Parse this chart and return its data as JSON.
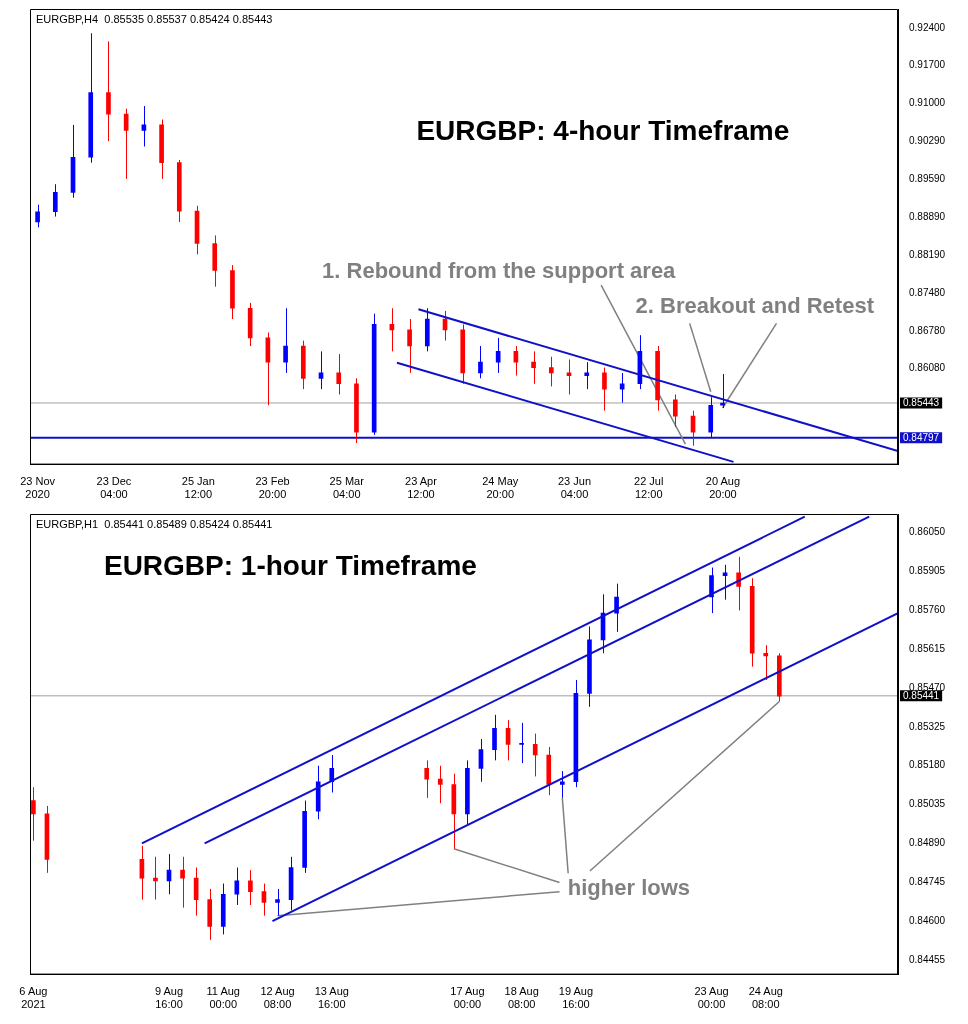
{
  "chart_data": [
    {
      "type": "candlestick",
      "title": "EURGBP: 4-hour Timeframe",
      "subtitle": "EURGBP,H4  0.85535 0.85537 0.85424 0.85443",
      "xlim": [
        "2020-11-20T00:00",
        "2021-10-29T00:00"
      ],
      "ylim": [
        0.843,
        0.9275
      ],
      "xticks": [
        {
          "value": "2020-11-23T00:00",
          "label": "23 Nov 2020"
        },
        {
          "value": "2020-12-23T04:00",
          "label": "23 Dec 04:00"
        },
        {
          "value": "2021-01-25T12:00",
          "label": "25 Jan 12:00"
        },
        {
          "value": "2021-02-23T20:00",
          "label": "23 Feb 20:00"
        },
        {
          "value": "2021-03-25T04:00",
          "label": "25 Mar 04:00"
        },
        {
          "value": "2021-04-23T12:00",
          "label": "23 Apr 12:00"
        },
        {
          "value": "2021-05-24T20:00",
          "label": "24 May 20:00"
        },
        {
          "value": "2021-06-23T04:00",
          "label": "23 Jun 04:00"
        },
        {
          "value": "2021-07-22T12:00",
          "label": "22 Jul 12:00"
        },
        {
          "value": "2021-08-20T20:00",
          "label": "20 Aug 20:00"
        }
      ],
      "yticks": [
        {
          "value": 0.924,
          "label": "0.92400"
        },
        {
          "value": 0.917,
          "label": "0.91700"
        },
        {
          "value": 0.91,
          "label": "0.91000"
        },
        {
          "value": 0.9029,
          "label": "0.90290"
        },
        {
          "value": 0.8959,
          "label": "0.89590"
        },
        {
          "value": 0.8889,
          "label": "0.88890"
        },
        {
          "value": 0.8819,
          "label": "0.88190"
        },
        {
          "value": 0.8748,
          "label": "0.87480"
        },
        {
          "value": 0.8678,
          "label": "0.86780"
        },
        {
          "value": 0.8608,
          "label": "0.86080"
        }
      ],
      "ref_lines": [
        {
          "axis": "y",
          "value": 0.84797,
          "label": "0.84797",
          "color": "#1010c8"
        },
        {
          "axis": "y",
          "value": 0.85443,
          "label": "0.85443"
        }
      ],
      "annotations": [
        {
          "text": "1. Rebound from the support area",
          "x": "2021-08-06T00:00",
          "y": 0.8468
        },
        {
          "text": "2. Breakout and Retest",
          "x": "2021-08-16T00:00",
          "y": 0.8565
        }
      ],
      "series": [
        {
          "type": "candlestick",
          "x": [
            "2020-11-23",
            "2020-11-30",
            "2020-12-07",
            "2020-12-14",
            "2020-12-21",
            "2020-12-28",
            "2021-01-04",
            "2021-01-11",
            "2021-01-18",
            "2021-01-25",
            "2021-02-01",
            "2021-02-08",
            "2021-02-15",
            "2021-02-22",
            "2021-03-01",
            "2021-03-08",
            "2021-03-15",
            "2021-03-22",
            "2021-03-29",
            "2021-04-05",
            "2021-04-12",
            "2021-04-19",
            "2021-04-26",
            "2021-05-03",
            "2021-05-10",
            "2021-05-17",
            "2021-05-24",
            "2021-05-31",
            "2021-06-07",
            "2021-06-14",
            "2021-06-21",
            "2021-06-28",
            "2021-07-05",
            "2021-07-12",
            "2021-07-19",
            "2021-07-26",
            "2021-08-02",
            "2021-08-09",
            "2021-08-16",
            "2021-08-20T16:00"
          ],
          "ohlc": [
            [
              0.888,
              0.8912,
              0.887,
              0.8899
            ],
            [
              0.8899,
              0.895,
              0.889,
              0.8935
            ],
            [
              0.8935,
              0.906,
              0.8925,
              0.9
            ],
            [
              0.9,
              0.923,
              0.899,
              0.912
            ],
            [
              0.912,
              0.9215,
              0.903,
              0.908
            ],
            [
              0.908,
              0.909,
              0.896,
              0.905
            ],
            [
              0.905,
              0.9095,
              0.902,
              0.906
            ],
            [
              0.906,
              0.907,
              0.896,
              0.899
            ],
            [
              0.899,
              0.8995,
              0.888,
              0.89
            ],
            [
              0.89,
              0.891,
              0.882,
              0.884
            ],
            [
              0.884,
              0.8855,
              0.876,
              0.879
            ],
            [
              0.879,
              0.88,
              0.87,
              0.872
            ],
            [
              0.872,
              0.873,
              0.865,
              0.8665
            ],
            [
              0.8665,
              0.8675,
              0.854,
              0.862
            ],
            [
              0.862,
              0.872,
              0.86,
              0.865
            ],
            [
              0.865,
              0.866,
              0.857,
              0.859
            ],
            [
              0.859,
              0.864,
              0.857,
              0.86
            ],
            [
              0.86,
              0.8635,
              0.856,
              0.858
            ],
            [
              0.858,
              0.859,
              0.847,
              0.849
            ],
            [
              0.849,
              0.871,
              0.8485,
              0.869
            ],
            [
              0.869,
              0.872,
              0.864,
              0.868
            ],
            [
              0.868,
              0.87,
              0.86,
              0.865
            ],
            [
              0.865,
              0.872,
              0.864,
              0.87
            ],
            [
              0.87,
              0.8715,
              0.866,
              0.868
            ],
            [
              0.868,
              0.869,
              0.858,
              0.86
            ],
            [
              0.86,
              0.865,
              0.859,
              0.862
            ],
            [
              0.862,
              0.8665,
              0.86,
              0.864
            ],
            [
              0.864,
              0.865,
              0.8595,
              0.862
            ],
            [
              0.862,
              0.864,
              0.858,
              0.861
            ],
            [
              0.861,
              0.863,
              0.8575,
              0.86
            ],
            [
              0.86,
              0.8625,
              0.856,
              0.8595
            ],
            [
              0.8595,
              0.862,
              0.857,
              0.86
            ],
            [
              0.86,
              0.861,
              0.853,
              0.857
            ],
            [
              0.857,
              0.86,
              0.8545,
              0.858
            ],
            [
              0.858,
              0.867,
              0.857,
              0.864
            ],
            [
              0.864,
              0.865,
              0.853,
              0.855
            ],
            [
              0.855,
              0.856,
              0.85,
              0.852
            ],
            [
              0.852,
              0.853,
              0.8465,
              0.849
            ],
            [
              0.849,
              0.8555,
              0.848,
              0.854
            ],
            [
              0.854,
              0.8598,
              0.8535,
              0.8544
            ]
          ],
          "colors": [
            "#0000ff",
            "#0000ff",
            "#0000ff",
            "#0000ff",
            "#ff0000",
            "#ff0000",
            "#0000ff",
            "#ff0000",
            "#ff0000",
            "#ff0000",
            "#ff0000",
            "#ff0000",
            "#ff0000",
            "#ff0000",
            "#0000ff",
            "#ff0000",
            "#0000ff",
            "#ff0000",
            "#ff0000",
            "#0000ff",
            "#ff0000",
            "#ff0000",
            "#0000ff",
            "#ff0000",
            "#ff0000",
            "#0000ff",
            "#0000ff",
            "#ff0000",
            "#ff0000",
            "#ff0000",
            "#ff0000",
            "#0000ff",
            "#ff0000",
            "#0000ff",
            "#0000ff",
            "#ff0000",
            "#ff0000",
            "#ff0000",
            "#0000ff",
            "#0000ff"
          ]
        },
        {
          "type": "line",
          "x": [
            "2021-04-22T12:00",
            "2021-10-29T00:00"
          ],
          "values": [
            0.8718,
            0.8455
          ],
          "color": "#1010c8"
        },
        {
          "type": "line",
          "x": [
            "2021-04-14T00:00",
            "2021-08-25T00:00"
          ],
          "values": [
            0.8619,
            0.8435
          ],
          "color": "#1010c8"
        }
      ]
    },
    {
      "type": "candlestick",
      "title": "EURGBP: 1-hour Timeframe",
      "subtitle": "EURGBP,H1  0.85441 0.85489 0.85424 0.85441",
      "xlim": [
        "2021-08-06T06:00",
        "2021-08-27T14:00"
      ],
      "ylim": [
        0.844,
        0.8612
      ],
      "xticks": [
        {
          "value": "2021-08-06T08:00",
          "label": "6 Aug 2021"
        },
        {
          "value": "2021-08-09T16:00",
          "label": "9 Aug 16:00"
        },
        {
          "value": "2021-08-11T00:00",
          "label": "11 Aug 00:00"
        },
        {
          "value": "2021-08-12T08:00",
          "label": "12 Aug 08:00"
        },
        {
          "value": "2021-08-13T16:00",
          "label": "13 Aug 16:00"
        },
        {
          "value": "2021-08-17T00:00",
          "label": "17 Aug 00:00"
        },
        {
          "value": "2021-08-18T08:00",
          "label": "18 Aug 08:00"
        },
        {
          "value": "2021-08-19T16:00",
          "label": "19 Aug 16:00"
        },
        {
          "value": "2021-08-23T00:00",
          "label": "23 Aug 00:00"
        },
        {
          "value": "2021-08-24T08:00",
          "label": "24 Aug 08:00"
        }
      ],
      "yticks": [
        {
          "value": 0.8605,
          "label": "0.86050"
        },
        {
          "value": 0.85905,
          "label": "0.85905"
        },
        {
          "value": 0.8576,
          "label": "0.85760"
        },
        {
          "value": 0.85615,
          "label": "0.85615"
        },
        {
          "value": 0.8547,
          "label": "0.85470"
        },
        {
          "value": 0.85325,
          "label": "0.85325"
        },
        {
          "value": 0.8518,
          "label": "0.85180"
        },
        {
          "value": 0.85035,
          "label": "0.85035"
        },
        {
          "value": 0.8489,
          "label": "0.84890"
        },
        {
          "value": 0.84745,
          "label": "0.84745"
        },
        {
          "value": 0.846,
          "label": "0.84600"
        },
        {
          "value": 0.84455,
          "label": "0.84455"
        }
      ],
      "ref_lines": [
        {
          "axis": "y",
          "value": 0.85441,
          "label": "0.85441"
        }
      ],
      "annotations": [
        {
          "text": "higher lows",
          "x": "2021-08-24T16:00",
          "y": 0.8542
        }
      ],
      "series": [
        {
          "type": "candlestick",
          "x": [
            "2021-08-06T08:00",
            "2021-08-06T16:00",
            "2021-08-09T00:00",
            "2021-08-09T08:00",
            "2021-08-09T16:00",
            "2021-08-10T00:00",
            "2021-08-10T08:00",
            "2021-08-10T16:00",
            "2021-08-11T00:00",
            "2021-08-11T08:00",
            "2021-08-11T16:00",
            "2021-08-12T00:00",
            "2021-08-12T08:00",
            "2021-08-12T16:00",
            "2021-08-13T00:00",
            "2021-08-13T08:00",
            "2021-08-13T16:00",
            "2021-08-16T00:00",
            "2021-08-16T08:00",
            "2021-08-16T16:00",
            "2021-08-17T00:00",
            "2021-08-17T08:00",
            "2021-08-17T16:00",
            "2021-08-18T00:00",
            "2021-08-18T08:00",
            "2021-08-18T16:00",
            "2021-08-19T00:00",
            "2021-08-19T08:00",
            "2021-08-19T16:00",
            "2021-08-20T00:00",
            "2021-08-20T08:00",
            "2021-08-20T16:00",
            "2021-08-23T00:00",
            "2021-08-23T08:00",
            "2021-08-23T16:00",
            "2021-08-24T00:00",
            "2021-08-24T08:00",
            "2021-08-24T16:00"
          ],
          "ohlc": [
            [
              0.8505,
              0.851,
              0.849,
              0.85
            ],
            [
              0.85,
              0.8503,
              0.8478,
              0.8483
            ],
            [
              0.8483,
              0.8488,
              0.8468,
              0.8476
            ],
            [
              0.8476,
              0.8484,
              0.8468,
              0.8475
            ],
            [
              0.8475,
              0.8485,
              0.847,
              0.8479
            ],
            [
              0.8479,
              0.8484,
              0.8465,
              0.8476
            ],
            [
              0.8476,
              0.848,
              0.8462,
              0.8468
            ],
            [
              0.8468,
              0.8472,
              0.8453,
              0.8458
            ],
            [
              0.8458,
              0.8474,
              0.8455,
              0.847
            ],
            [
              0.847,
              0.848,
              0.8466,
              0.8475
            ],
            [
              0.8475,
              0.8479,
              0.8466,
              0.8471
            ],
            [
              0.8471,
              0.8474,
              0.8462,
              0.8467
            ],
            [
              0.8467,
              0.8472,
              0.8462,
              0.8468
            ],
            [
              0.8468,
              0.8484,
              0.8464,
              0.848
            ],
            [
              0.848,
              0.8505,
              0.8478,
              0.8501
            ],
            [
              0.8501,
              0.8518,
              0.8498,
              0.8512
            ],
            [
              0.8512,
              0.8522,
              0.8508,
              0.8517
            ],
            [
              0.8517,
              0.852,
              0.8506,
              0.8513
            ],
            [
              0.8513,
              0.8518,
              0.8504,
              0.8511
            ],
            [
              0.8511,
              0.8515,
              0.8487,
              0.85
            ],
            [
              0.85,
              0.852,
              0.8496,
              0.8517
            ],
            [
              0.8517,
              0.8528,
              0.8512,
              0.8524
            ],
            [
              0.8524,
              0.8537,
              0.852,
              0.8532
            ],
            [
              0.8532,
              0.8535,
              0.852,
              0.8526
            ],
            [
              0.8526,
              0.8534,
              0.8519,
              0.8526
            ],
            [
              0.8526,
              0.853,
              0.8514,
              0.8522
            ],
            [
              0.8522,
              0.8525,
              0.8507,
              0.8511
            ],
            [
              0.8511,
              0.8516,
              0.8506,
              0.8512
            ],
            [
              0.8512,
              0.855,
              0.851,
              0.8545
            ],
            [
              0.8545,
              0.857,
              0.854,
              0.8565
            ],
            [
              0.8565,
              0.8582,
              0.856,
              0.8575
            ],
            [
              0.8575,
              0.8586,
              0.8568,
              0.8581
            ],
            [
              0.8581,
              0.8592,
              0.8575,
              0.8589
            ],
            [
              0.8589,
              0.8593,
              0.858,
              0.859
            ],
            [
              0.859,
              0.8596,
              0.8576,
              0.8585
            ],
            [
              0.8585,
              0.8588,
              0.8555,
              0.856
            ],
            [
              0.856,
              0.8563,
              0.855,
              0.8559
            ],
            [
              0.8559,
              0.856,
              0.8542,
              0.8544
            ]
          ],
          "colors": [
            "#ff0000",
            "#ff0000",
            "#ff0000",
            "#ff0000",
            "#0000ff",
            "#ff0000",
            "#ff0000",
            "#ff0000",
            "#0000ff",
            "#0000ff",
            "#ff0000",
            "#ff0000",
            "#0000ff",
            "#0000ff",
            "#0000ff",
            "#0000ff",
            "#0000ff",
            "#ff0000",
            "#ff0000",
            "#ff0000",
            "#0000ff",
            "#0000ff",
            "#0000ff",
            "#ff0000",
            "#0000ff",
            "#ff0000",
            "#ff0000",
            "#0000ff",
            "#0000ff",
            "#0000ff",
            "#0000ff",
            "#0000ff",
            "#0000ff",
            "#0000ff",
            "#ff0000",
            "#ff0000",
            "#ff0000",
            "#ff0000"
          ]
        },
        {
          "type": "line",
          "x": [
            "2021-08-09T00:00",
            "2021-08-25T07:00"
          ],
          "values": [
            0.8489,
            0.8611
          ],
          "color": "#1010c8"
        },
        {
          "type": "line",
          "x": [
            "2021-08-10T13:00",
            "2021-08-26T21:00"
          ],
          "values": [
            0.8489,
            0.8611
          ],
          "color": "#1010c8"
        },
        {
          "type": "line",
          "x": [
            "2021-08-12T05:00",
            "2021-08-27T14:00"
          ],
          "values": [
            0.846,
            0.8575
          ],
          "color": "#1010c8"
        }
      ]
    }
  ]
}
